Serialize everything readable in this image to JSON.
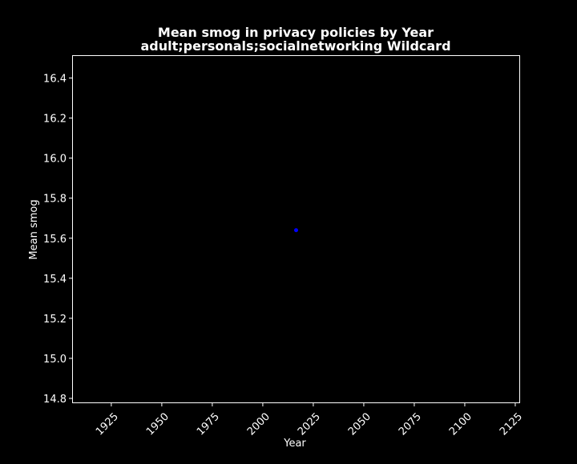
{
  "chart_data": {
    "type": "scatter",
    "title": "Mean smog in privacy policies by Year",
    "subtitle": "adult;personals;socialnetworking Wildcard",
    "xlabel": "Year",
    "ylabel": "Mean smog",
    "xlim": [
      1906,
      2127
    ],
    "ylim": [
      14.78,
      16.51
    ],
    "xticks": [
      1925,
      1950,
      1975,
      2000,
      2025,
      2050,
      2075,
      2100,
      2125
    ],
    "yticks": [
      14.8,
      15.0,
      15.2,
      15.4,
      15.6,
      15.8,
      16.0,
      16.2,
      16.4
    ],
    "grid": false,
    "series": [
      {
        "x": [
          2016.5
        ],
        "y": [
          15.64
        ]
      }
    ]
  },
  "colors": {
    "background": "#000000",
    "foreground": "#ffffff",
    "point": "#0000ff"
  }
}
